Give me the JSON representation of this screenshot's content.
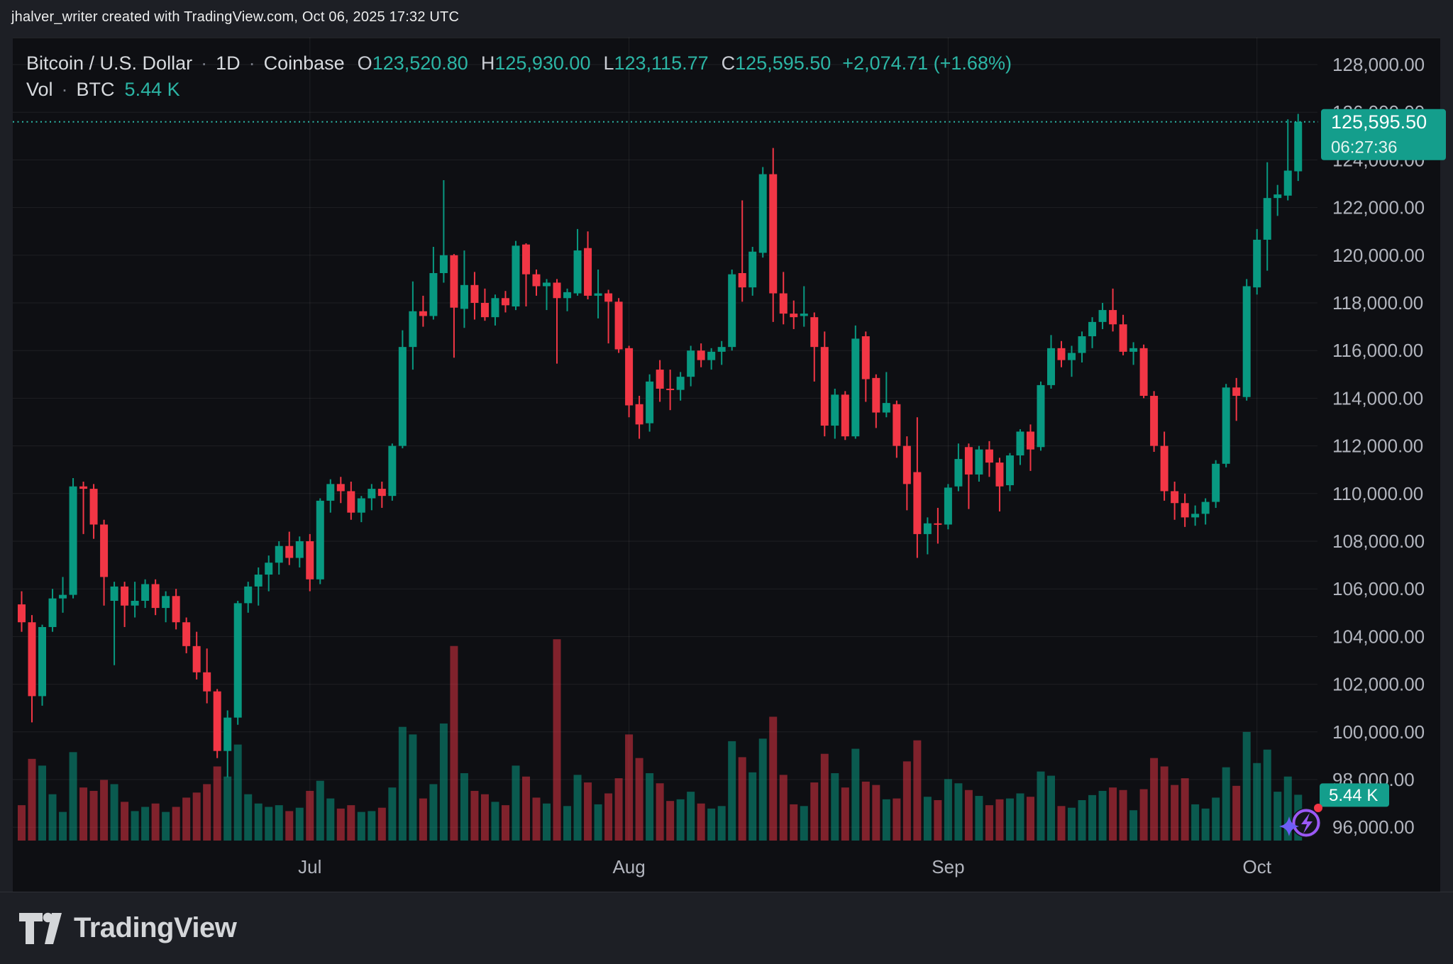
{
  "attribution": "jhalver_writer created with TradingView.com, Oct 06, 2025 17:32 UTC",
  "footer": {
    "brand": "TradingView"
  },
  "legend": {
    "symbol": "Bitcoin / U.S. Dollar",
    "interval": "1D",
    "exchange": "Coinbase",
    "sep": "·",
    "ohlc": [
      {
        "label": "O",
        "value": "123,520.80"
      },
      {
        "label": "H",
        "value": "125,930.00"
      },
      {
        "label": "L",
        "value": "123,115.77"
      },
      {
        "label": "C",
        "value": "125,595.50"
      }
    ],
    "change": "+2,074.71 (+1.68%)",
    "vol_label": "Vol",
    "vol_unit": "BTC",
    "vol_value": "5.44 K"
  },
  "price_badge": {
    "price": "125,595.50",
    "countdown": "06:27:36",
    "price_value": 125595.5
  },
  "volume_badge": {
    "value": "5.44 K"
  },
  "colors": {
    "background": "#1d1f25",
    "pane": "#0e0f13",
    "grid": "rgba(255,255,255,0.07)",
    "up": "#089981",
    "down": "#f23645",
    "vol_up": "rgba(8,153,129,0.55)",
    "vol_down": "rgba(242,54,69,0.50)",
    "text_dim": "#b2b5be",
    "text_bright": "#d7dade",
    "teal_text": "#2cb5a5",
    "badge": "#149e8c",
    "icon_purple": "#9b59f6",
    "icon_star": "#6d5ef7",
    "icon_red": "#f23645"
  },
  "chart_data": {
    "type": "candlestick",
    "title": "Bitcoin / U.S. Dollar · 1D · Coinbase",
    "y_axis": {
      "min": 96000,
      "max": 128000,
      "step": 2000,
      "tick_format": "#,##0.00"
    },
    "x_axis": {
      "month_ticks": [
        {
          "label": "Jul",
          "index": 28
        },
        {
          "label": "Aug",
          "index": 59
        },
        {
          "label": "Sep",
          "index": 90
        },
        {
          "label": "Oct",
          "index": 120
        }
      ]
    },
    "last_price": 125595.5,
    "last_volume_btc": 5440,
    "volume_scale_max": 24000,
    "candles_note": "daily bars Jun 3 - Oct 6, 2025; each entry [open, high, low, close, volume_btc]",
    "candles": [
      [
        105350,
        105900,
        104200,
        104600,
        4200
      ],
      [
        104600,
        104900,
        100400,
        101500,
        9700
      ],
      [
        101500,
        104500,
        101100,
        104400,
        8900
      ],
      [
        104400,
        106000,
        104200,
        105600,
        5500
      ],
      [
        105600,
        106500,
        105000,
        105750,
        3400
      ],
      [
        105750,
        110650,
        105600,
        110300,
        10500
      ],
      [
        110300,
        110500,
        108300,
        110200,
        6300
      ],
      [
        110200,
        110400,
        108100,
        108700,
        5900
      ],
      [
        108700,
        108900,
        105300,
        106500,
        7200
      ],
      [
        105500,
        106300,
        102800,
        106100,
        6700
      ],
      [
        106100,
        106300,
        104400,
        105300,
        4600
      ],
      [
        105300,
        106300,
        104800,
        105500,
        3500
      ],
      [
        105500,
        106400,
        105200,
        106200,
        4000
      ],
      [
        106200,
        106400,
        104900,
        105200,
        4400
      ],
      [
        105200,
        105900,
        104600,
        105700,
        3400
      ],
      [
        105700,
        106000,
        104300,
        104600,
        4000
      ],
      [
        104600,
        104800,
        103300,
        103600,
        5100
      ],
      [
        103600,
        104200,
        102200,
        102500,
        5700
      ],
      [
        102500,
        103500,
        101200,
        101700,
        6700
      ],
      [
        101700,
        101800,
        98900,
        99200,
        8800
      ],
      [
        99200,
        100900,
        98100,
        100600,
        7600
      ],
      [
        100600,
        105500,
        100300,
        105400,
        11400
      ],
      [
        105400,
        106300,
        105000,
        106100,
        5500
      ],
      [
        106100,
        106900,
        105300,
        106600,
        4400
      ],
      [
        106600,
        107400,
        105900,
        107100,
        4000
      ],
      [
        107100,
        108000,
        106600,
        107800,
        4200
      ],
      [
        107800,
        108400,
        107000,
        107300,
        3500
      ],
      [
        107300,
        108200,
        106900,
        108000,
        3900
      ],
      [
        108000,
        108300,
        105900,
        106400,
        5900
      ],
      [
        106400,
        109800,
        106200,
        109700,
        7100
      ],
      [
        109700,
        110600,
        109200,
        110400,
        5000
      ],
      [
        110400,
        110700,
        109600,
        110100,
        3800
      ],
      [
        110100,
        110500,
        108900,
        109200,
        4200
      ],
      [
        109200,
        109900,
        108800,
        109800,
        3400
      ],
      [
        109800,
        110400,
        109300,
        110200,
        3500
      ],
      [
        110200,
        110500,
        109400,
        109900,
        3900
      ],
      [
        109900,
        112100,
        109700,
        112000,
        6300
      ],
      [
        112000,
        116850,
        111900,
        116150,
        13500
      ],
      [
        116150,
        118900,
        115200,
        117650,
        12600
      ],
      [
        117650,
        118300,
        117000,
        117450,
        5000
      ],
      [
        117450,
        120350,
        117300,
        119250,
        6700
      ],
      [
        119250,
        123150,
        118850,
        120000,
        13900
      ],
      [
        120000,
        120050,
        115700,
        117800,
        23100
      ],
      [
        117750,
        120200,
        116950,
        118750,
        8000
      ],
      [
        118750,
        119300,
        117300,
        118000,
        5900
      ],
      [
        118000,
        118600,
        117250,
        117400,
        5500
      ],
      [
        117400,
        118350,
        117050,
        118200,
        4600
      ],
      [
        118200,
        118500,
        117600,
        117900,
        4200
      ],
      [
        117850,
        120600,
        117700,
        120400,
        8900
      ],
      [
        120450,
        120500,
        117850,
        119200,
        7600
      ],
      [
        119200,
        119400,
        118300,
        118700,
        5100
      ],
      [
        118700,
        119000,
        117700,
        118850,
        4400
      ],
      [
        118850,
        119000,
        115450,
        118200,
        23900
      ],
      [
        118200,
        118600,
        117650,
        118450,
        4100
      ],
      [
        118400,
        121100,
        118300,
        120200,
        7800
      ],
      [
        120300,
        121000,
        118150,
        118300,
        6900
      ],
      [
        118300,
        119400,
        117350,
        118400,
        4300
      ],
      [
        118400,
        118550,
        116300,
        118050,
        5600
      ],
      [
        118050,
        118200,
        115900,
        116050,
        7400
      ],
      [
        116100,
        116200,
        113200,
        113700,
        12600
      ],
      [
        113750,
        114100,
        112300,
        112900,
        9800
      ],
      [
        112950,
        115000,
        112600,
        114700,
        8000
      ],
      [
        115200,
        115600,
        113850,
        114400,
        6800
      ],
      [
        114400,
        115200,
        113500,
        114350,
        4700
      ],
      [
        114350,
        115100,
        113900,
        114900,
        4900
      ],
      [
        114900,
        116200,
        114500,
        116000,
        5800
      ],
      [
        116000,
        116300,
        115300,
        115600,
        4400
      ],
      [
        115600,
        116100,
        115200,
        115950,
        3800
      ],
      [
        115950,
        116400,
        115400,
        116150,
        4100
      ],
      [
        116150,
        119400,
        116000,
        119200,
        11800
      ],
      [
        119250,
        122300,
        118050,
        118650,
        9900
      ],
      [
        118650,
        120350,
        118300,
        120150,
        8100
      ],
      [
        120100,
        123700,
        119900,
        123400,
        12100
      ],
      [
        123400,
        124500,
        117200,
        118400,
        14700
      ],
      [
        118400,
        119300,
        117100,
        117550,
        7800
      ],
      [
        117550,
        118100,
        116900,
        117400,
        4300
      ],
      [
        117450,
        118700,
        117000,
        117550,
        4100
      ],
      [
        117400,
        117600,
        114700,
        116150,
        6900
      ],
      [
        116150,
        116800,
        112400,
        112850,
        10300
      ],
      [
        112850,
        114400,
        112300,
        114150,
        8000
      ],
      [
        114150,
        114300,
        112250,
        112400,
        6300
      ],
      [
        112400,
        117050,
        112300,
        116500,
        10900
      ],
      [
        116600,
        116800,
        113850,
        114800,
        7000
      ],
      [
        114850,
        115000,
        112750,
        113400,
        6600
      ],
      [
        113400,
        115100,
        113200,
        113800,
        4900
      ],
      [
        113750,
        113900,
        111500,
        112000,
        5000
      ],
      [
        112000,
        112400,
        109300,
        110400,
        9400
      ],
      [
        110900,
        113200,
        107300,
        108300,
        11900
      ],
      [
        108300,
        109000,
        107450,
        108750,
        5200
      ],
      [
        108750,
        109400,
        107900,
        108700,
        4800
      ],
      [
        108700,
        110400,
        108500,
        110250,
        7300
      ],
      [
        110300,
        112100,
        110100,
        111450,
        6800
      ],
      [
        111950,
        112100,
        109350,
        110800,
        6000
      ],
      [
        110800,
        112000,
        110500,
        111850,
        5300
      ],
      [
        111850,
        112200,
        110700,
        111300,
        4200
      ],
      [
        111300,
        111500,
        109250,
        110300,
        4900
      ],
      [
        110350,
        111700,
        110100,
        111600,
        5000
      ],
      [
        111600,
        112700,
        111200,
        112600,
        5600
      ],
      [
        112600,
        112900,
        110950,
        111850,
        5200
      ],
      [
        111950,
        114700,
        111800,
        114550,
        8200
      ],
      [
        114550,
        116650,
        114400,
        116100,
        7700
      ],
      [
        116100,
        116400,
        115300,
        115600,
        4100
      ],
      [
        115600,
        116200,
        114900,
        115900,
        3900
      ],
      [
        115900,
        116800,
        115500,
        116600,
        4800
      ],
      [
        116600,
        117400,
        116100,
        117200,
        5400
      ],
      [
        117200,
        118000,
        116900,
        117700,
        5900
      ],
      [
        117700,
        118600,
        116800,
        117100,
        6300
      ],
      [
        117100,
        117500,
        115800,
        115950,
        6000
      ],
      [
        115950,
        116350,
        115400,
        116100,
        3600
      ],
      [
        116100,
        116250,
        114000,
        114100,
        6100
      ],
      [
        114100,
        114300,
        111750,
        112000,
        9800
      ],
      [
        112000,
        112600,
        109700,
        110100,
        8800
      ],
      [
        110100,
        110500,
        108900,
        109600,
        6600
      ],
      [
        109600,
        110000,
        108600,
        109000,
        7400
      ],
      [
        109000,
        109500,
        108650,
        109150,
        4300
      ],
      [
        109150,
        109800,
        108700,
        109650,
        3800
      ],
      [
        109650,
        111400,
        109400,
        111250,
        5100
      ],
      [
        111250,
        114600,
        111100,
        114450,
        8700
      ],
      [
        114450,
        114850,
        113050,
        114100,
        6500
      ],
      [
        114050,
        119000,
        113900,
        118700,
        12900
      ],
      [
        118650,
        121100,
        118350,
        120650,
        9200
      ],
      [
        120650,
        123900,
        119350,
        122400,
        10800
      ],
      [
        122400,
        122950,
        121650,
        122550,
        5800
      ],
      [
        122500,
        125700,
        122300,
        123550,
        7600
      ],
      [
        123520.8,
        125930,
        123115.77,
        125595.5,
        5440
      ]
    ]
  }
}
